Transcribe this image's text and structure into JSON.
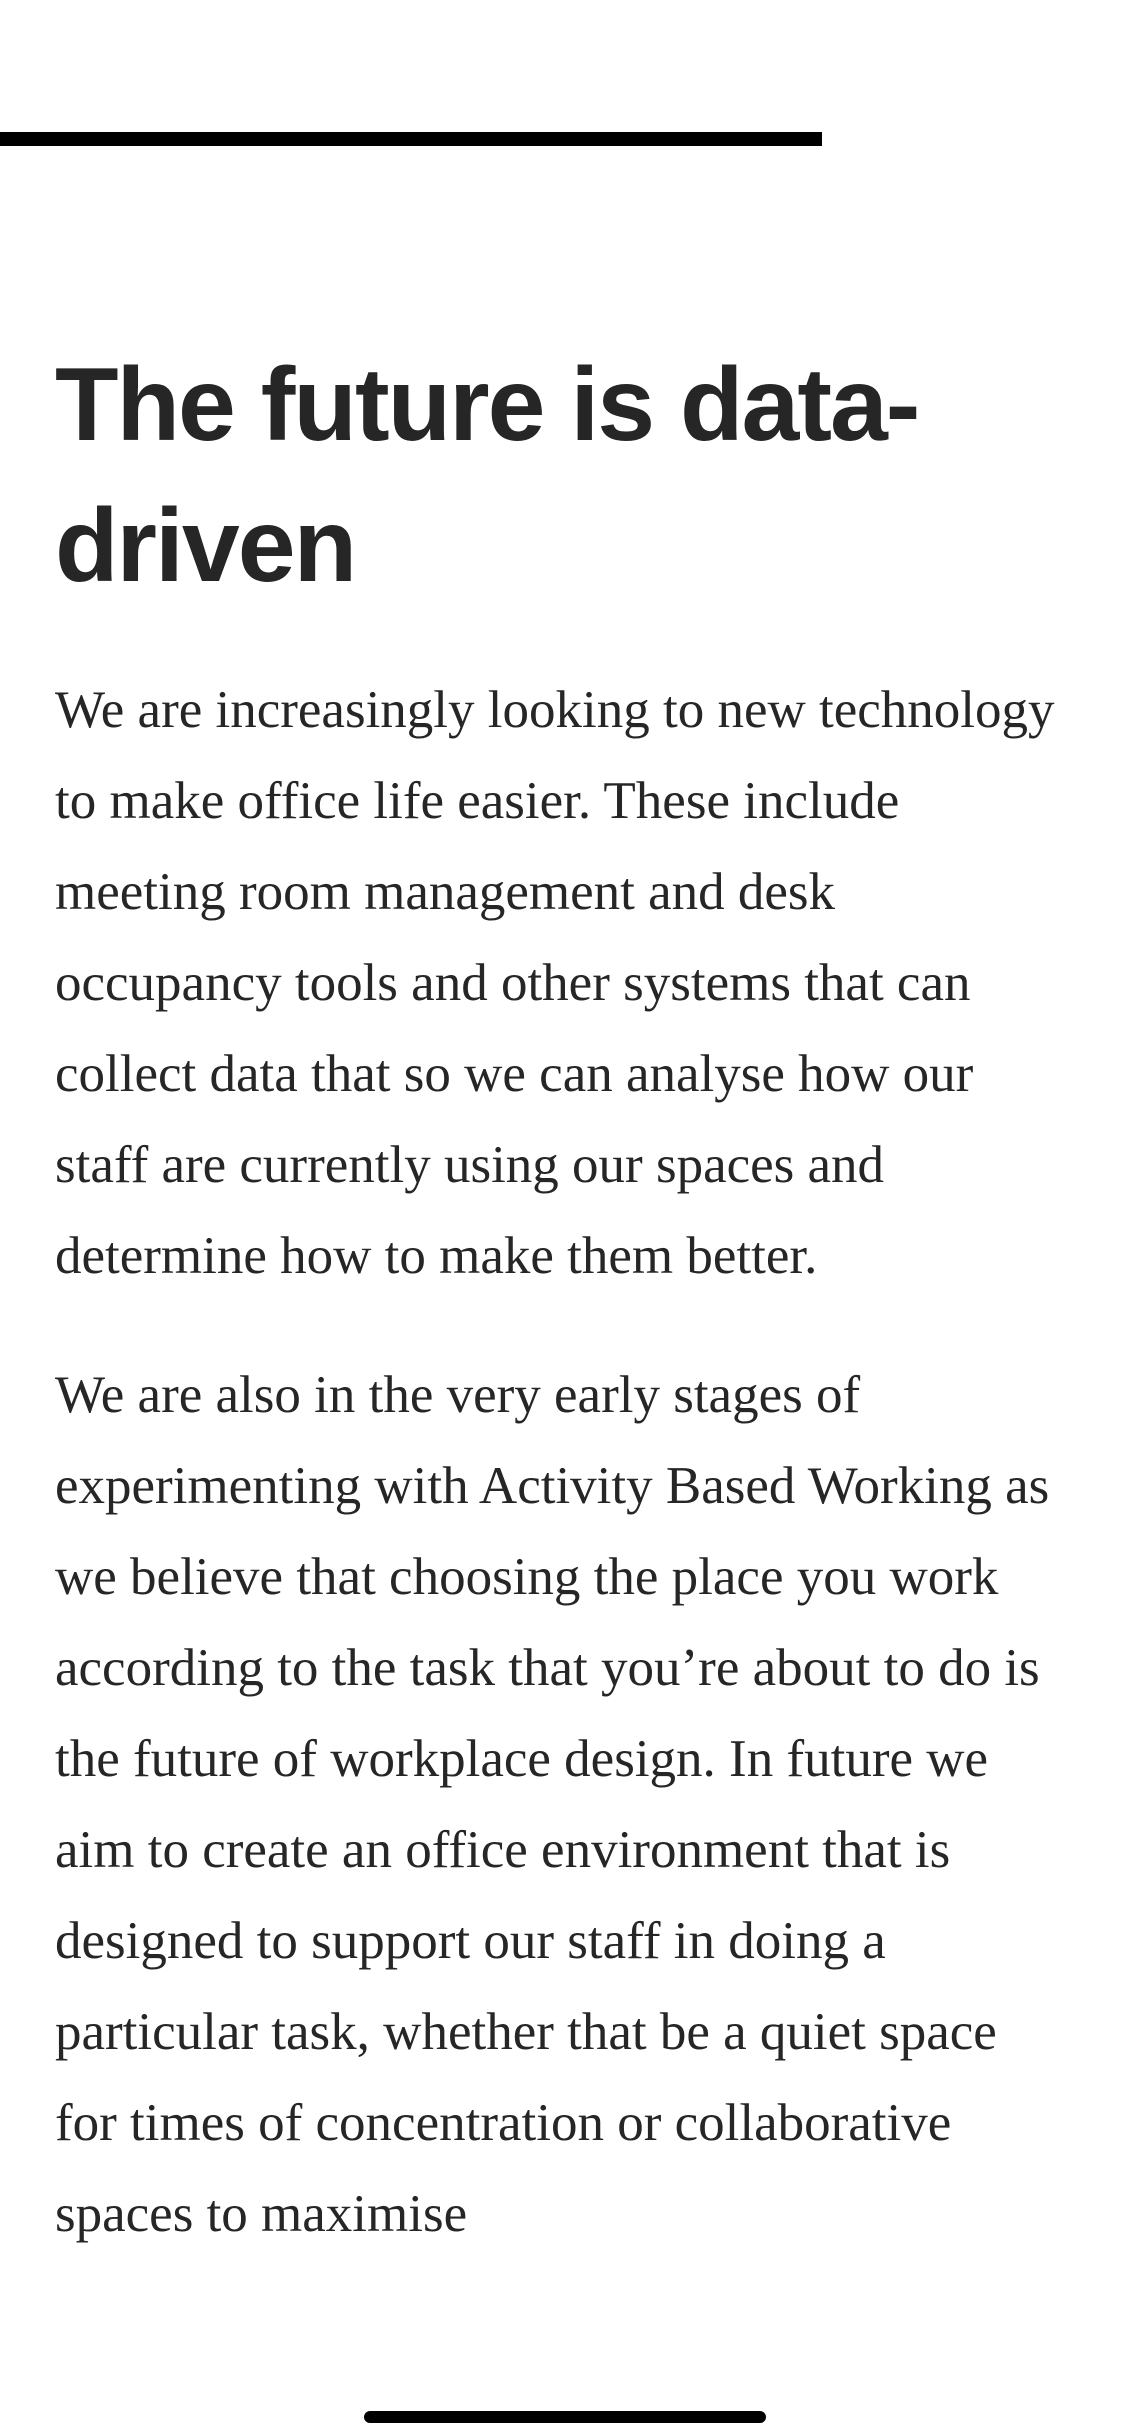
{
  "article": {
    "heading": "The future is data-driven",
    "paragraphs": [
      "We are increasingly looking to new technology to make office life easier. These include meeting room management and desk occupancy tools and other systems that can collect data that so we can analyse how our staff are currently using our spaces and determine how to make them better.",
      "We are also in the very early stages of experimenting with Activity Based Working as we believe that choosing the place you work according to the task that you’re about to do is the future of workplace design. In future we aim to create an office environment that is designed to support our staff in doing a particular task, whether that be a quiet space for times of concentration or collaborative spaces to maximise"
    ]
  }
}
